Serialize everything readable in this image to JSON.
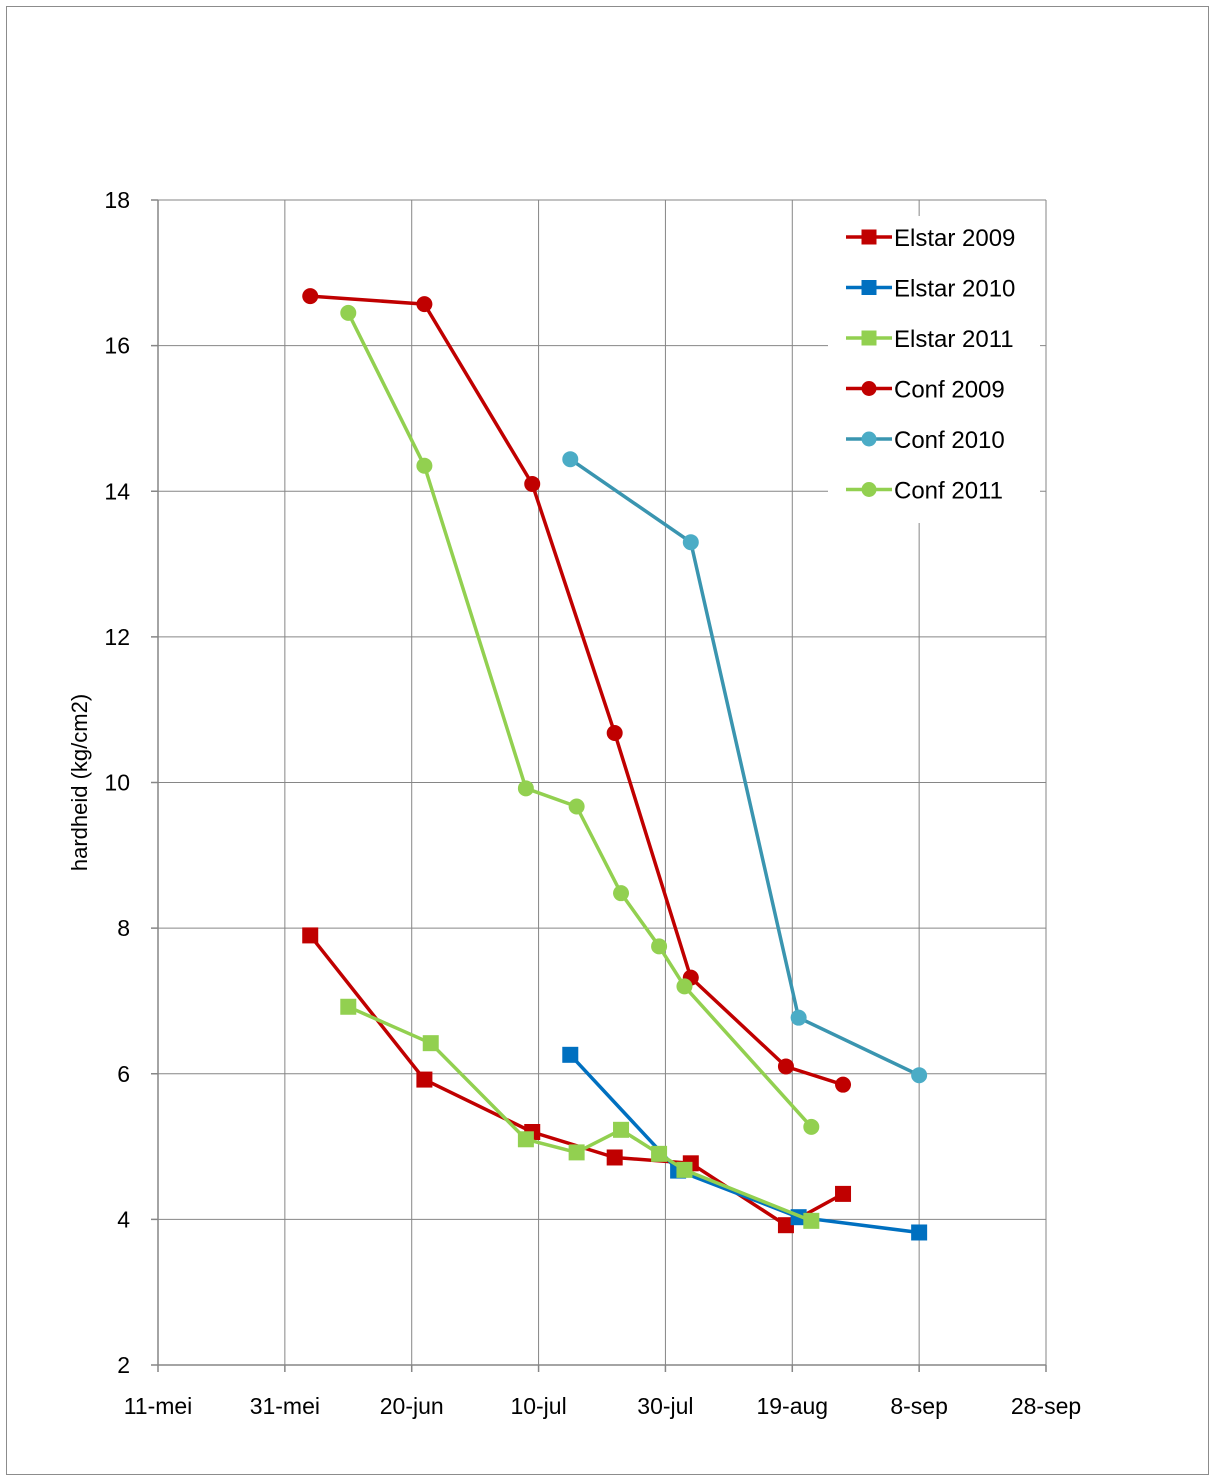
{
  "chart_data": {
    "type": "line",
    "title": "",
    "xlabel": "",
    "ylabel": "hardheid (kg/cm2)",
    "x_tick_labels": [
      "11-mei",
      "31-mei",
      "20-jun",
      "10-jul",
      "30-jul",
      "19-aug",
      "8-sep",
      "28-sep"
    ],
    "x_tick_dates": [
      "05-11",
      "05-31",
      "06-20",
      "07-10",
      "07-30",
      "08-19",
      "09-08",
      "09-28"
    ],
    "ylim": [
      2,
      18
    ],
    "y_ticks": [
      2,
      4,
      6,
      8,
      10,
      12,
      14,
      16,
      18
    ],
    "grid": true,
    "legend_position": "top-right",
    "series": [
      {
        "name": "Elstar 2009",
        "color": "#c00000",
        "marker": "square",
        "points": [
          [
            "06-04",
            7.9
          ],
          [
            "06-22",
            5.92
          ],
          [
            "07-09",
            5.2
          ],
          [
            "07-22",
            4.85
          ],
          [
            "08-03",
            4.77
          ],
          [
            "08-18",
            3.92
          ],
          [
            "08-27",
            4.35
          ]
        ]
      },
      {
        "name": "Elstar 2010",
        "color": "#0070c0",
        "marker": "square",
        "points": [
          [
            "07-15",
            6.26
          ],
          [
            "08-01",
            4.67
          ],
          [
            "08-20",
            4.03
          ],
          [
            "09-08",
            3.82
          ]
        ]
      },
      {
        "name": "Elstar 2011",
        "color": "#92d050",
        "marker": "square",
        "points": [
          [
            "06-10",
            6.92
          ],
          [
            "06-23",
            6.42
          ],
          [
            "07-08",
            5.1
          ],
          [
            "07-16",
            4.92
          ],
          [
            "07-23",
            5.23
          ],
          [
            "07-29",
            4.9
          ],
          [
            "08-02",
            4.68
          ],
          [
            "08-22",
            3.98
          ]
        ]
      },
      {
        "name": "Conf 2009",
        "color": "#c00000",
        "marker": "circle",
        "points": [
          [
            "06-04",
            16.68
          ],
          [
            "06-22",
            16.57
          ],
          [
            "07-09",
            14.1
          ],
          [
            "07-22",
            10.68
          ],
          [
            "08-03",
            7.32
          ],
          [
            "08-18",
            6.1
          ],
          [
            "08-27",
            5.85
          ]
        ]
      },
      {
        "name": "Conf 2010",
        "color": "#4bacc6",
        "stroke": "#3a95b0",
        "marker": "circle",
        "points": [
          [
            "07-15",
            14.44
          ],
          [
            "08-03",
            13.3
          ],
          [
            "08-20",
            6.77
          ],
          [
            "09-08",
            5.98
          ]
        ]
      },
      {
        "name": "Conf 2011",
        "color": "#92d050",
        "marker": "circle",
        "points": [
          [
            "06-10",
            16.45
          ],
          [
            "06-22",
            14.35
          ],
          [
            "07-08",
            9.92
          ],
          [
            "07-16",
            9.67
          ],
          [
            "07-23",
            8.48
          ],
          [
            "07-29",
            7.75
          ],
          [
            "08-02",
            7.2
          ],
          [
            "08-22",
            5.27
          ]
        ]
      }
    ]
  }
}
